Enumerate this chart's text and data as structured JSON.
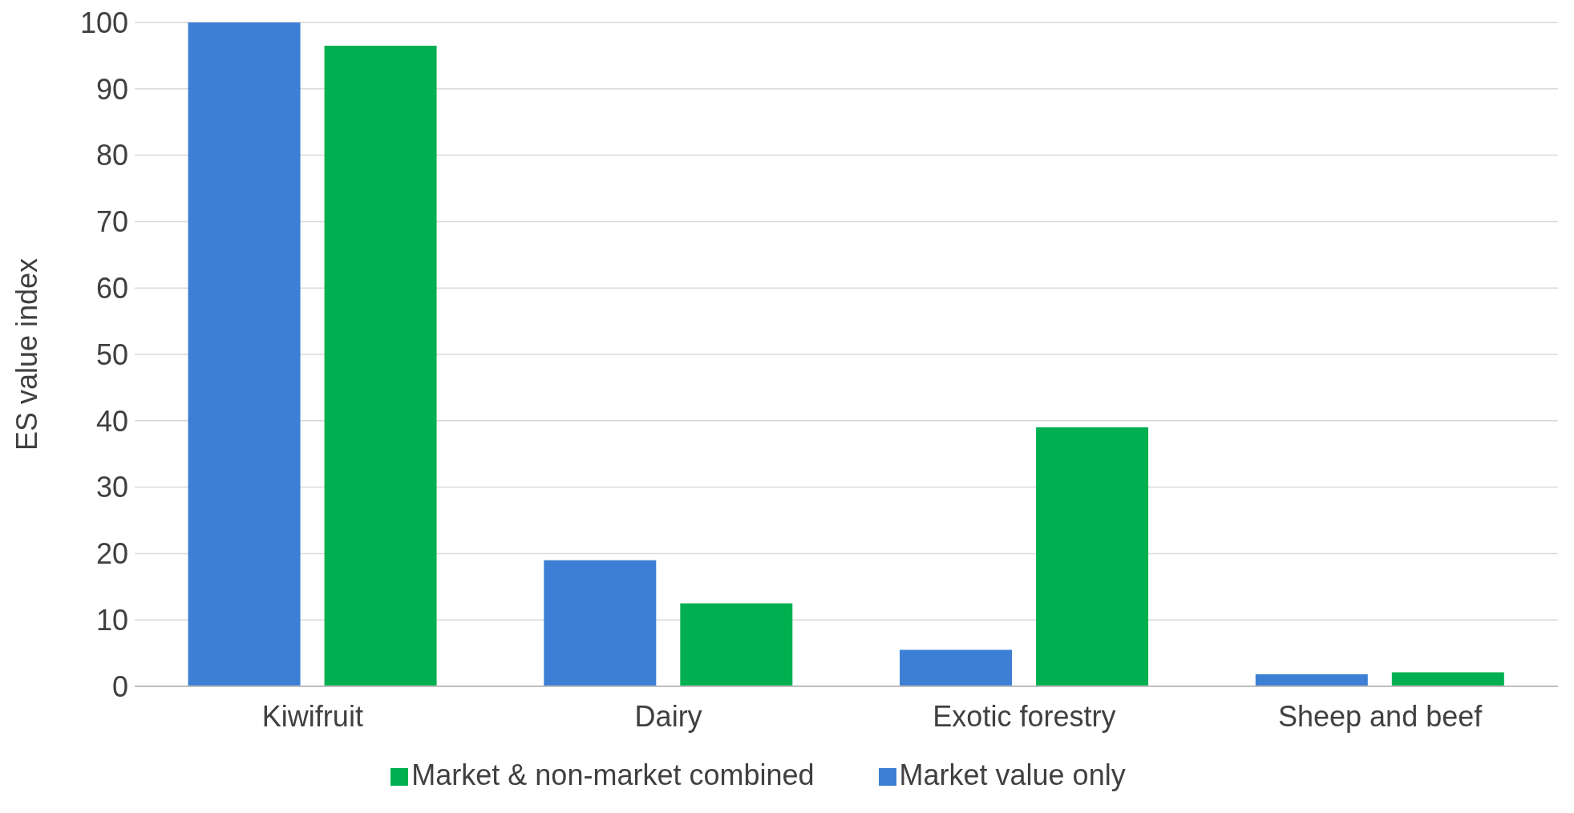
{
  "chart_data": {
    "type": "bar",
    "ylabel": "ES value index",
    "categories": [
      "Kiwifruit",
      "Dairy",
      "Exotic forestry",
      "Sheep and beef"
    ],
    "series": [
      {
        "name": "Market value only",
        "color": "#3d7fd4",
        "values": [
          100,
          19,
          5.5,
          1.8
        ]
      },
      {
        "name": "Market & non-market combined",
        "color": "#00b050",
        "values": [
          96.5,
          12.5,
          39,
          2.1
        ]
      }
    ],
    "ylim": [
      0,
      100
    ],
    "yticks": [
      0,
      10,
      20,
      30,
      40,
      50,
      60,
      70,
      80,
      90,
      100
    ],
    "grid": "y",
    "legend": "bottom"
  }
}
